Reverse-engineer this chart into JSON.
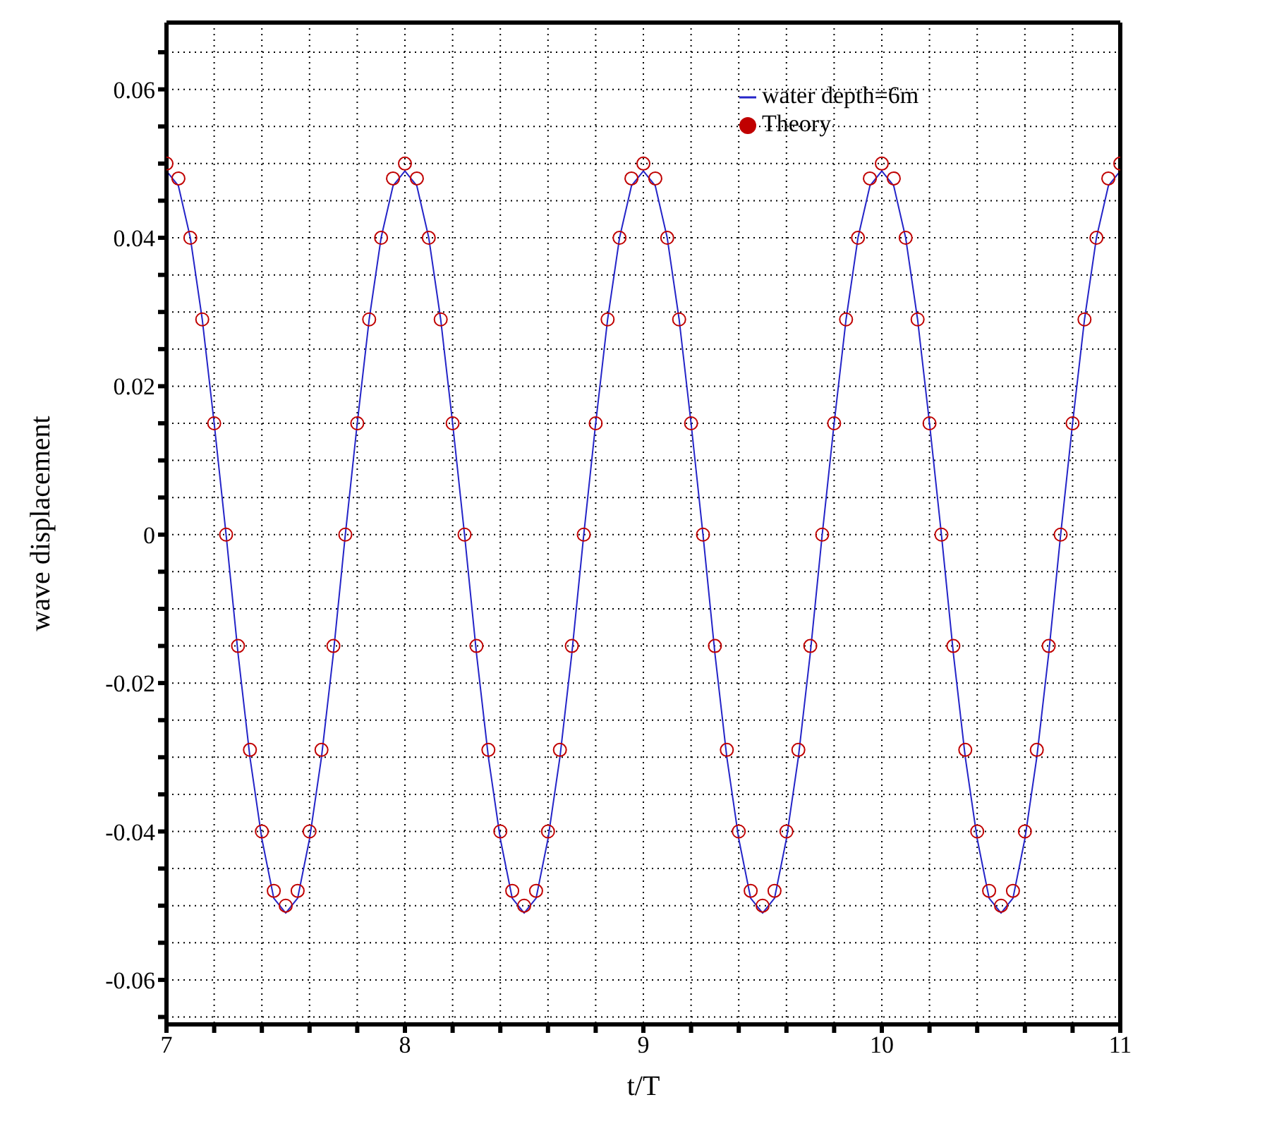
{
  "chart_data": {
    "type": "line",
    "xlabel": "t/T",
    "ylabel": "wave displacement",
    "x": [
      7,
      7.05,
      7.1,
      7.15,
      7.2,
      7.25,
      7.3,
      7.35,
      7.4,
      7.45,
      7.5,
      7.55,
      7.6,
      7.65,
      7.7,
      7.75,
      7.8,
      7.85,
      7.9,
      7.95,
      8,
      8.05,
      8.1,
      8.15,
      8.2,
      8.25,
      8.3,
      8.35,
      8.4,
      8.45,
      8.5,
      8.55,
      8.6,
      8.65,
      8.7,
      8.75,
      8.8,
      8.85,
      8.9,
      8.95,
      9,
      9.05,
      9.1,
      9.15,
      9.2,
      9.25,
      9.3,
      9.35,
      9.4,
      9.45,
      9.5,
      9.55,
      9.6,
      9.65,
      9.7,
      9.75,
      9.8,
      9.85,
      9.9,
      9.95,
      10,
      10.05,
      10.1,
      10.15,
      10.2,
      10.25,
      10.3,
      10.35,
      10.4,
      10.45,
      10.5,
      10.55,
      10.6,
      10.65,
      10.7,
      10.75,
      10.8,
      10.85,
      10.9,
      10.95,
      11
    ],
    "series": [
      {
        "name": "water depth=6m",
        "color": "#2424c8",
        "marker": "none",
        "line_style": "solid",
        "values": [
          0.049,
          0.047,
          0.04,
          0.029,
          0.015,
          0,
          -0.016,
          -0.03,
          -0.041,
          -0.049,
          -0.051,
          -0.049,
          -0.041,
          -0.03,
          -0.016,
          0,
          0.015,
          0.029,
          0.04,
          0.047,
          0.049,
          0.047,
          0.04,
          0.029,
          0.015,
          0,
          -0.016,
          -0.03,
          -0.041,
          -0.049,
          -0.051,
          -0.049,
          -0.041,
          -0.03,
          -0.016,
          0,
          0.015,
          0.029,
          0.04,
          0.047,
          0.049,
          0.047,
          0.04,
          0.029,
          0.015,
          0,
          -0.016,
          -0.03,
          -0.041,
          -0.049,
          -0.051,
          -0.049,
          -0.041,
          -0.03,
          -0.016,
          0,
          0.015,
          0.029,
          0.04,
          0.047,
          0.049,
          0.047,
          0.04,
          0.029,
          0.015,
          0,
          -0.016,
          -0.03,
          -0.041,
          -0.049,
          -0.051,
          -0.049,
          -0.041,
          -0.03,
          -0.016,
          0,
          0.015,
          0.029,
          0.04,
          0.047,
          0.049
        ]
      },
      {
        "name": "Theory",
        "type": "scatter",
        "color": "#c00000",
        "marker": "circle",
        "values": [
          0.05,
          0.048,
          0.04,
          0.029,
          0.015,
          0,
          -0.015,
          -0.029,
          -0.04,
          -0.048,
          -0.05,
          -0.048,
          -0.04,
          -0.029,
          -0.015,
          0,
          0.015,
          0.029,
          0.04,
          0.048,
          0.05,
          0.048,
          0.04,
          0.029,
          0.015,
          0,
          -0.015,
          -0.029,
          -0.04,
          -0.048,
          -0.05,
          -0.048,
          -0.04,
          -0.029,
          -0.015,
          0,
          0.015,
          0.029,
          0.04,
          0.048,
          0.05,
          0.048,
          0.04,
          0.029,
          0.015,
          0,
          -0.015,
          -0.029,
          -0.04,
          -0.048,
          -0.05,
          -0.048,
          -0.04,
          -0.029,
          -0.015,
          0,
          0.015,
          0.029,
          0.04,
          0.048,
          0.05,
          0.048,
          0.04,
          0.029,
          0.015,
          0,
          -0.015,
          -0.029,
          -0.04,
          -0.048,
          -0.05,
          -0.048,
          -0.04,
          -0.029,
          -0.015,
          0,
          0.015,
          0.029,
          0.04,
          0.048,
          0.05
        ]
      }
    ],
    "xlim": [
      7,
      11
    ],
    "xticks": [
      7,
      {
        "value": 7.2,
        "label": null
      },
      {
        "value": 7.4,
        "label": null
      },
      {
        "value": 7.6,
        "label": null
      },
      {
        "value": 7.8,
        "label": null
      },
      8,
      {
        "value": 8.2,
        "label": null
      },
      {
        "value": 8.4,
        "label": null
      },
      {
        "value": 8.6,
        "label": null
      },
      {
        "value": 8.8,
        "label": null
      },
      9,
      {
        "value": 9.2,
        "label": null
      },
      {
        "value": 9.4,
        "label": null
      },
      {
        "value": 9.6,
        "label": null
      },
      {
        "value": 9.8,
        "label": null
      },
      10,
      {
        "value": 10.2,
        "label": null
      },
      {
        "value": 10.4,
        "label": null
      },
      {
        "value": 10.6,
        "label": null
      },
      {
        "value": 10.8,
        "label": null
      },
      11
    ],
    "ylim": [
      -0.066,
      0.069
    ],
    "yticks": [
      {
        "value": -0.065,
        "label": null
      },
      -0.06,
      {
        "value": -0.055,
        "label": null
      },
      {
        "value": -0.05,
        "label": null
      },
      {
        "value": -0.045,
        "label": null
      },
      -0.04,
      {
        "value": -0.035,
        "label": null
      },
      {
        "value": -0.03,
        "label": null
      },
      {
        "value": -0.025,
        "label": null
      },
      -0.02,
      {
        "value": -0.015,
        "label": null
      },
      {
        "value": -0.01,
        "label": null
      },
      {
        "value": -0.005,
        "label": null
      },
      0,
      {
        "value": 0.005,
        "label": null
      },
      {
        "value": 0.01,
        "label": null
      },
      {
        "value": 0.015,
        "label": null
      },
      0.02,
      {
        "value": 0.025,
        "label": null
      },
      {
        "value": 0.03,
        "label": null
      },
      {
        "value": 0.035,
        "label": null
      },
      0.04,
      {
        "value": 0.045,
        "label": null
      },
      {
        "value": 0.05,
        "label": null
      },
      {
        "value": 0.055,
        "label": null
      },
      0.06,
      {
        "value": 0.065,
        "label": null
      }
    ],
    "grid": true,
    "legend": "top right"
  }
}
